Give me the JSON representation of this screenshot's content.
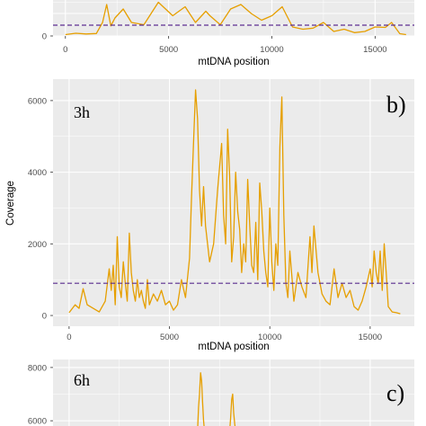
{
  "chart_data": [
    {
      "type": "line",
      "panel": "a",
      "xlabel": "mtDNA position",
      "ylabel": "",
      "x_ticks": [
        "0",
        "5000",
        "10000",
        "15000"
      ],
      "y_ticks": [
        "0"
      ],
      "xlim": [
        -600,
        16900
      ],
      "ylim": [
        0,
        1600
      ],
      "threshold": 480,
      "grid": true,
      "series_color": "#e69f00",
      "threshold_color": "#5b2c8f",
      "x": [
        0,
        500,
        1000,
        1500,
        1800,
        2000,
        2200,
        2400,
        2800,
        3200,
        3800,
        4500,
        5200,
        5800,
        6300,
        6800,
        7000,
        7500,
        8000,
        8500,
        9000,
        9500,
        10000,
        10500,
        11000,
        11500,
        12000,
        12500,
        13000,
        13500,
        14000,
        14500,
        15000,
        15500,
        15800,
        16200,
        16500
      ],
      "y": [
        60,
        120,
        90,
        110,
        600,
        1400,
        450,
        800,
        1200,
        600,
        500,
        1500,
        900,
        1300,
        600,
        1100,
        900,
        500,
        1200,
        1400,
        1000,
        700,
        900,
        1300,
        400,
        300,
        350,
        600,
        200,
        300,
        150,
        200,
        400,
        380,
        600,
        100,
        60
      ]
    },
    {
      "type": "line",
      "panel": "b",
      "annotation": "3h",
      "xlabel": "mtDNA position",
      "ylabel": "Coverage",
      "x_ticks": [
        "0",
        "5000",
        "10000",
        "15000"
      ],
      "y_ticks": [
        "0",
        "2000",
        "4000",
        "6000"
      ],
      "xlim": [
        -800,
        17200
      ],
      "ylim": [
        -300,
        6600
      ],
      "threshold": 900,
      "grid": true,
      "series_color": "#e69f00",
      "threshold_color": "#5b2c8f",
      "x": [
        0,
        300,
        500,
        700,
        900,
        1200,
        1500,
        1800,
        2000,
        2100,
        2200,
        2300,
        2400,
        2500,
        2600,
        2700,
        2800,
        2900,
        3000,
        3100,
        3200,
        3300,
        3400,
        3500,
        3600,
        3700,
        3800,
        3900,
        4000,
        4200,
        4400,
        4600,
        4800,
        5000,
        5200,
        5400,
        5600,
        5800,
        6000,
        6100,
        6200,
        6300,
        6400,
        6500,
        6600,
        6700,
        6800,
        7000,
        7200,
        7400,
        7600,
        7700,
        7800,
        7900,
        8000,
        8100,
        8200,
        8300,
        8400,
        8500,
        8600,
        8700,
        8800,
        8900,
        9000,
        9100,
        9200,
        9300,
        9400,
        9500,
        9600,
        9700,
        9800,
        9900,
        10000,
        10100,
        10200,
        10300,
        10400,
        10500,
        10600,
        10700,
        10800,
        10900,
        11000,
        11200,
        11400,
        11600,
        11800,
        12000,
        12100,
        12200,
        12400,
        12600,
        12800,
        13000,
        13200,
        13400,
        13600,
        13800,
        14000,
        14200,
        14400,
        14600,
        14800,
        15000,
        15100,
        15200,
        15300,
        15400,
        15500,
        15600,
        15700,
        15800,
        15900,
        16100,
        16300,
        16500
      ],
      "y": [
        80,
        300,
        200,
        750,
        300,
        200,
        100,
        400,
        1300,
        700,
        1400,
        300,
        2200,
        800,
        500,
        1500,
        900,
        400,
        2300,
        1200,
        700,
        400,
        1000,
        500,
        700,
        400,
        200,
        1000,
        300,
        600,
        400,
        700,
        300,
        400,
        150,
        300,
        1000,
        500,
        1600,
        3300,
        4800,
        6300,
        5500,
        3500,
        2500,
        3600,
        2500,
        1500,
        2000,
        3500,
        4800,
        2800,
        2000,
        5200,
        3900,
        1500,
        2200,
        4000,
        2900,
        2400,
        1200,
        2000,
        1500,
        3800,
        2500,
        1400,
        1200,
        2600,
        1000,
        3700,
        2900,
        1800,
        1200,
        800,
        3000,
        1500,
        700,
        2000,
        1400,
        4700,
        6100,
        2800,
        900,
        500,
        1800,
        400,
        1200,
        800,
        500,
        2200,
        1200,
        2500,
        1200,
        600,
        400,
        300,
        1300,
        500,
        900,
        500,
        700,
        250,
        150,
        400,
        800,
        1300,
        800,
        1800,
        1200,
        900,
        1800,
        700,
        2000,
        1200,
        250,
        100,
        80,
        50
      ]
    },
    {
      "type": "line",
      "panel": "c",
      "annotation": "6h",
      "xlabel": "",
      "ylabel": "",
      "x_ticks": [],
      "y_ticks": [
        "6000",
        "8000"
      ],
      "xlim": [
        -800,
        17200
      ],
      "ylim": [
        5600,
        8300
      ],
      "grid": true,
      "series_color": "#e69f00",
      "x": [
        6400,
        6450,
        6500,
        6550,
        6600,
        6650,
        6700,
        6750,
        6800,
        6850,
        6900,
        6950,
        7000,
        7050,
        7100,
        7150,
        7200,
        7250,
        7300,
        7350,
        7400,
        7450,
        7500,
        7550,
        7600,
        7700,
        7800,
        7900,
        8000,
        8050,
        8100,
        8150,
        8200,
        8250,
        8300,
        8350,
        8400,
        8450,
        8500,
        8550,
        8600,
        8650,
        8700,
        8750,
        8800
      ],
      "y": [
        5600,
        6500,
        7000,
        7800,
        7500,
        6700,
        6000,
        5600,
        null,
        null,
        null,
        null,
        null,
        null,
        null,
        null,
        null,
        null,
        null,
        null,
        null,
        null,
        null,
        null,
        null,
        null,
        null,
        null,
        5600,
        6100,
        6800,
        7000,
        6300,
        5900,
        5600,
        null,
        null,
        null,
        null,
        null,
        null,
        null,
        null,
        null,
        null
      ]
    }
  ],
  "labels": {
    "panel_a_xlabel": "mtDNA position",
    "panel_b_annot": "3h",
    "panel_b_letter": "b)",
    "panel_b_ylabel": "Coverage",
    "panel_b_xlabel": "mtDNA position",
    "panel_c_annot": "6h",
    "panel_c_letter": "c)",
    "panel_c_ytick_6000": "6000",
    "panel_c_ytick_8000": "8000",
    "panel_a_ytick_0": "0"
  }
}
